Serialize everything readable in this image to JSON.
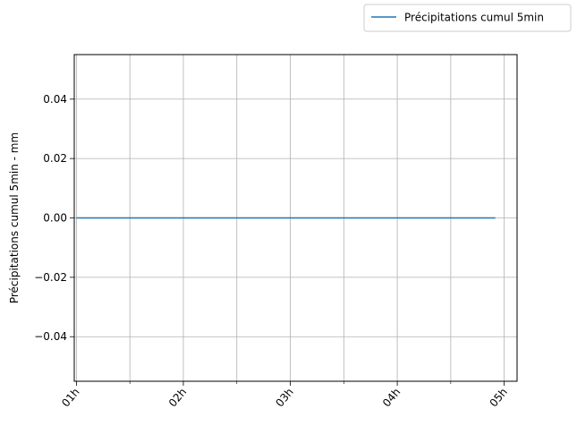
{
  "chart_data": {
    "type": "line",
    "title": "",
    "xlabel": "",
    "ylabel": "Précipitations cumul 5min - mm",
    "x_ticks_major": [
      "01h",
      "02h",
      "03h",
      "04h",
      "05h"
    ],
    "x_minor_ticks_per_interval": 1,
    "x_range_hours": [
      0.98,
      5.12
    ],
    "ylim": [
      -0.055,
      0.055
    ],
    "y_ticks": [
      "−0.04",
      "−0.02",
      "0.00",
      "0.02",
      "0.04"
    ],
    "y_tick_values": [
      -0.04,
      -0.02,
      0.0,
      0.02,
      0.04
    ],
    "grid": true,
    "legend_position": "top-right outside",
    "series": [
      {
        "name": "Précipitations cumul 5min",
        "color": "#1f77b4",
        "x_hours": [
          1.0,
          1.083,
          1.167,
          1.25,
          1.333,
          1.417,
          1.5,
          1.583,
          1.667,
          1.75,
          1.833,
          1.917,
          2.0,
          2.083,
          2.167,
          2.25,
          2.333,
          2.417,
          2.5,
          2.583,
          2.667,
          2.75,
          2.833,
          2.917,
          3.0,
          3.083,
          3.167,
          3.25,
          3.333,
          3.417,
          3.5,
          3.583,
          3.667,
          3.75,
          3.833,
          3.917,
          4.0,
          4.083,
          4.167,
          4.25,
          4.333,
          4.417,
          4.5,
          4.583,
          4.667,
          4.75,
          4.833,
          4.917
        ],
        "values": [
          0,
          0,
          0,
          0,
          0,
          0,
          0,
          0,
          0,
          0,
          0,
          0,
          0,
          0,
          0,
          0,
          0,
          0,
          0,
          0,
          0,
          0,
          0,
          0,
          0,
          0,
          0,
          0,
          0,
          0,
          0,
          0,
          0,
          0,
          0,
          0,
          0,
          0,
          0,
          0,
          0,
          0,
          0,
          0,
          0,
          0,
          0,
          0
        ]
      }
    ]
  }
}
